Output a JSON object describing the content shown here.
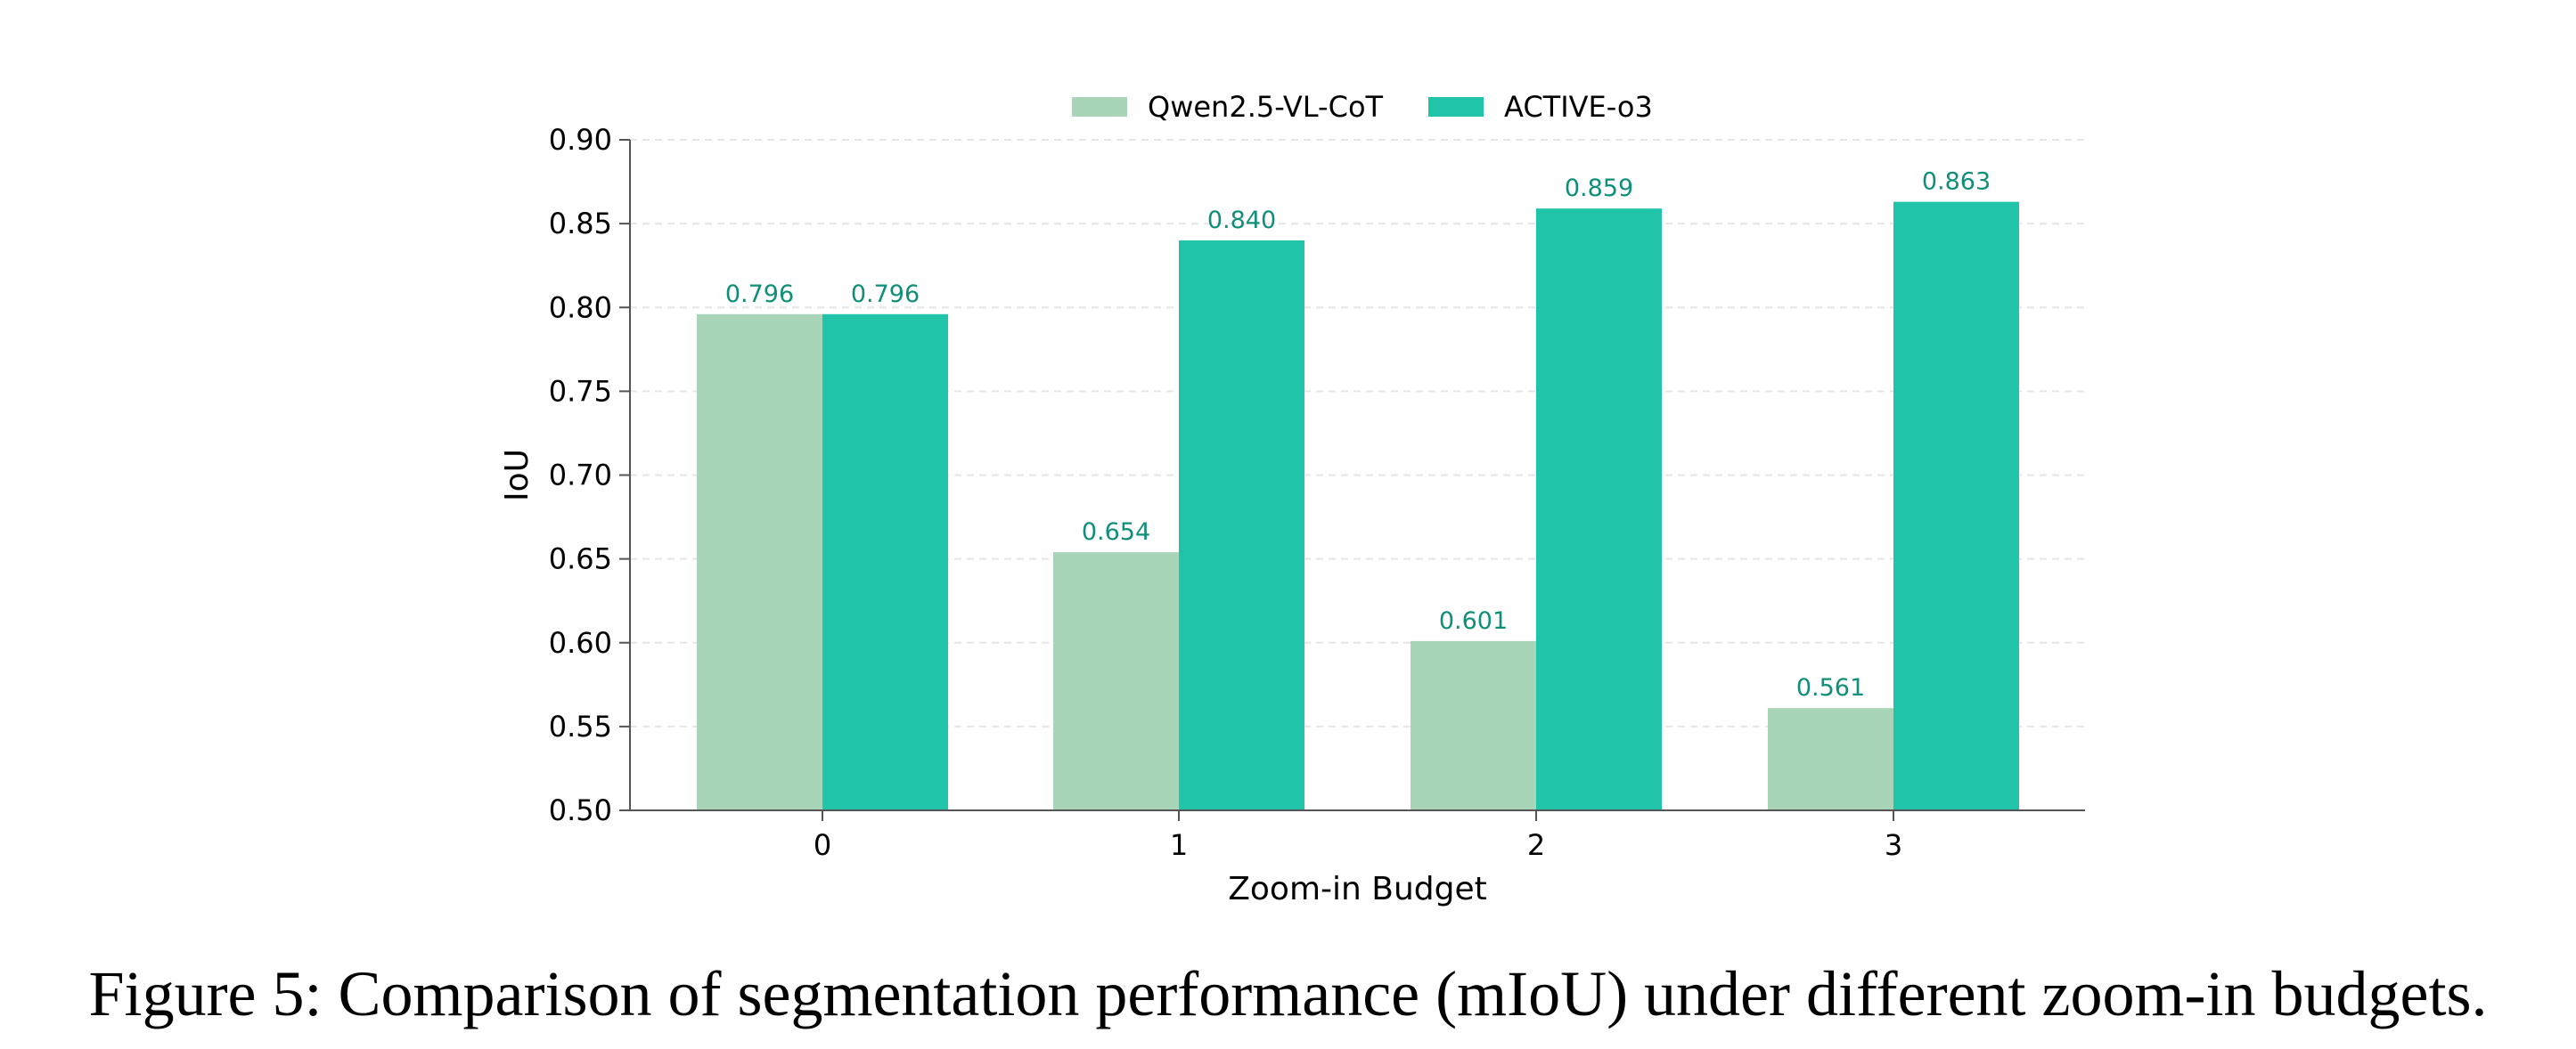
{
  "chart_data": {
    "type": "bar",
    "categories": [
      "0",
      "1",
      "2",
      "3"
    ],
    "series": [
      {
        "name": "Qwen2.5-VL-CoT",
        "values": [
          0.796,
          0.654,
          0.601,
          0.561
        ],
        "labels": [
          "0.796",
          "0.654",
          "0.601",
          "0.561"
        ],
        "color": "#a8d5b8"
      },
      {
        "name": "ACTIVE-o3",
        "values": [
          0.796,
          0.84,
          0.859,
          0.863
        ],
        "labels": [
          "0.796",
          "0.840",
          "0.859",
          "0.863"
        ],
        "color": "#20c4a8"
      }
    ],
    "label_color": "#0f8f78",
    "xlabel": "Zoom-in Budget",
    "ylabel": "IoU",
    "ylim": [
      0.5,
      0.9
    ],
    "yticks": [
      "0.50",
      "0.55",
      "0.60",
      "0.65",
      "0.70",
      "0.75",
      "0.80",
      "0.85",
      "0.90"
    ],
    "grid": true,
    "legend_position": "top-center"
  },
  "caption": "Figure 5: Comparison of segmentation performance (mIoU) under different zoom-in budgets."
}
